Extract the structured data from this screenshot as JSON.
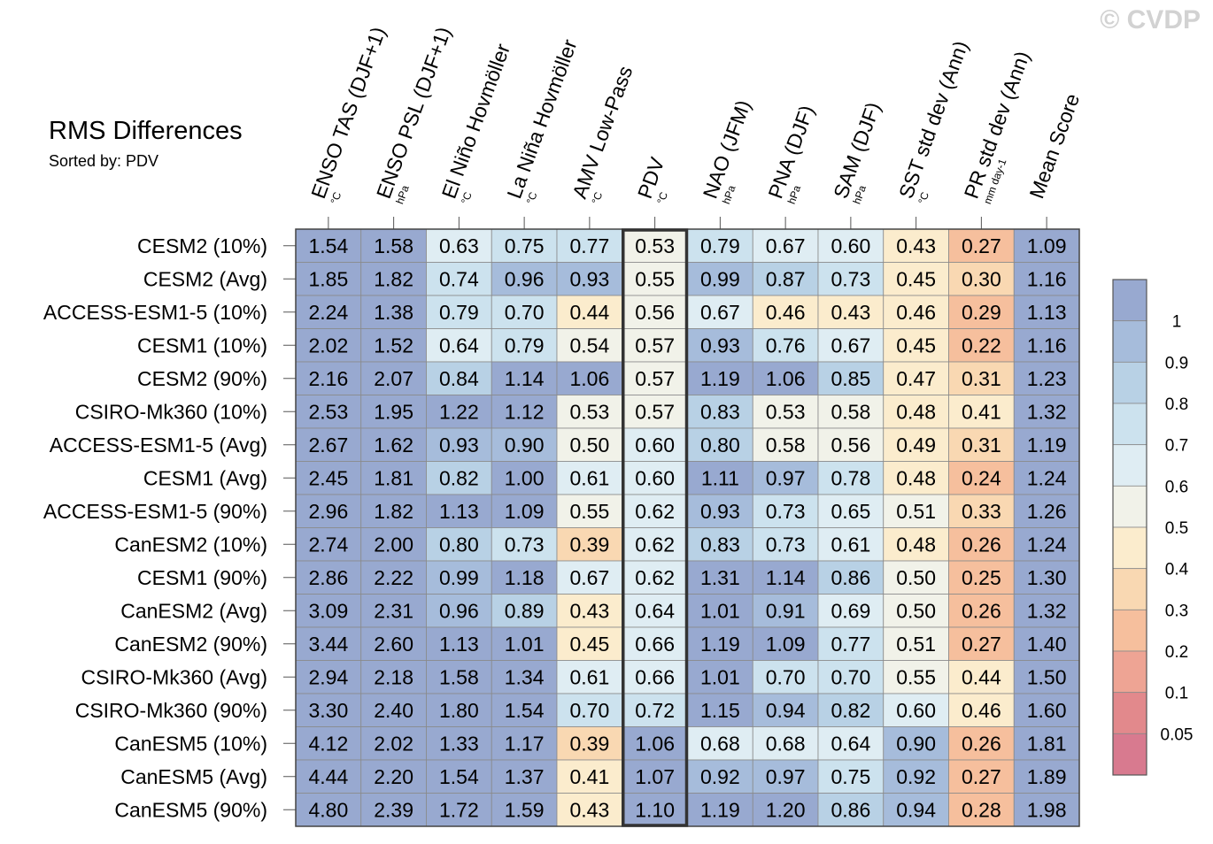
{
  "watermark": "© CVDP",
  "chart_data": {
    "type": "heatmap",
    "title": "RMS Differences",
    "subtitle": "Sorted by: PDV",
    "columns": [
      {
        "label": "ENSO TAS (DJF+1)",
        "unit": "°C"
      },
      {
        "label": "ENSO PSL (DJF+1)",
        "unit": "hPa"
      },
      {
        "label": "El Niño Hovmöller",
        "unit": "°C"
      },
      {
        "label": "La Niña Hovmöller",
        "unit": "°C"
      },
      {
        "label": "AMV Low-Pass",
        "unit": "°C"
      },
      {
        "label": "PDV",
        "unit": "°C"
      },
      {
        "label": "NAO (JFM)",
        "unit": "hPa"
      },
      {
        "label": "PNA (DJF)",
        "unit": "hPa"
      },
      {
        "label": "SAM (DJF)",
        "unit": "hPa"
      },
      {
        "label": "SST std dev (Ann)",
        "unit": "°C"
      },
      {
        "label": "PR std dev (Ann)",
        "unit": "mm day-1"
      },
      {
        "label": "Mean Score",
        "unit": ""
      }
    ],
    "highlighted_column": "PDV",
    "rows": [
      {
        "label": "CESM2 (10%)",
        "values": [
          1.54,
          1.58,
          0.63,
          0.75,
          0.77,
          0.53,
          0.79,
          0.67,
          0.6,
          0.43,
          0.27,
          1.09
        ]
      },
      {
        "label": "CESM2 (Avg)",
        "values": [
          1.85,
          1.82,
          0.74,
          0.96,
          0.93,
          0.55,
          0.99,
          0.87,
          0.73,
          0.45,
          0.3,
          1.16
        ]
      },
      {
        "label": "ACCESS-ESM1-5 (10%)",
        "values": [
          2.24,
          1.38,
          0.79,
          0.7,
          0.44,
          0.56,
          0.67,
          0.46,
          0.43,
          0.46,
          0.29,
          1.13
        ]
      },
      {
        "label": "CESM1 (10%)",
        "values": [
          2.02,
          1.52,
          0.64,
          0.79,
          0.54,
          0.57,
          0.93,
          0.76,
          0.67,
          0.45,
          0.22,
          1.16
        ]
      },
      {
        "label": "CESM2 (90%)",
        "values": [
          2.16,
          2.07,
          0.84,
          1.14,
          1.06,
          0.57,
          1.19,
          1.06,
          0.85,
          0.47,
          0.31,
          1.23
        ]
      },
      {
        "label": "CSIRO-Mk360 (10%)",
        "values": [
          2.53,
          1.95,
          1.22,
          1.12,
          0.53,
          0.57,
          0.83,
          0.53,
          0.58,
          0.48,
          0.41,
          1.32
        ]
      },
      {
        "label": "ACCESS-ESM1-5 (Avg)",
        "values": [
          2.67,
          1.62,
          0.93,
          0.9,
          0.5,
          0.6,
          0.8,
          0.58,
          0.56,
          0.49,
          0.31,
          1.19
        ]
      },
      {
        "label": "CESM1 (Avg)",
        "values": [
          2.45,
          1.81,
          0.82,
          1.0,
          0.61,
          0.6,
          1.11,
          0.97,
          0.78,
          0.48,
          0.24,
          1.24
        ]
      },
      {
        "label": "ACCESS-ESM1-5 (90%)",
        "values": [
          2.96,
          1.82,
          1.13,
          1.09,
          0.55,
          0.62,
          0.93,
          0.73,
          0.65,
          0.51,
          0.33,
          1.26
        ]
      },
      {
        "label": "CanESM2 (10%)",
        "values": [
          2.74,
          2.0,
          0.8,
          0.73,
          0.39,
          0.62,
          0.83,
          0.73,
          0.61,
          0.48,
          0.26,
          1.24
        ]
      },
      {
        "label": "CESM1 (90%)",
        "values": [
          2.86,
          2.22,
          0.99,
          1.18,
          0.67,
          0.62,
          1.31,
          1.14,
          0.86,
          0.5,
          0.25,
          1.3
        ]
      },
      {
        "label": "CanESM2 (Avg)",
        "values": [
          3.09,
          2.31,
          0.96,
          0.89,
          0.43,
          0.64,
          1.01,
          0.91,
          0.69,
          0.5,
          0.26,
          1.32
        ]
      },
      {
        "label": "CanESM2 (90%)",
        "values": [
          3.44,
          2.6,
          1.13,
          1.01,
          0.45,
          0.66,
          1.19,
          1.09,
          0.77,
          0.51,
          0.27,
          1.4
        ]
      },
      {
        "label": "CSIRO-Mk360 (Avg)",
        "values": [
          2.94,
          2.18,
          1.58,
          1.34,
          0.61,
          0.66,
          1.01,
          0.7,
          0.7,
          0.55,
          0.44,
          1.5
        ]
      },
      {
        "label": "CSIRO-Mk360 (90%)",
        "values": [
          3.3,
          2.4,
          1.8,
          1.54,
          0.7,
          0.72,
          1.15,
          0.94,
          0.82,
          0.6,
          0.46,
          1.6
        ]
      },
      {
        "label": "CanESM5 (10%)",
        "values": [
          4.12,
          2.02,
          1.33,
          1.17,
          0.39,
          1.06,
          0.68,
          0.68,
          0.64,
          0.9,
          0.26,
          1.81
        ]
      },
      {
        "label": "CanESM5 (Avg)",
        "values": [
          4.44,
          2.2,
          1.54,
          1.37,
          0.41,
          1.07,
          0.92,
          0.97,
          0.75,
          0.92,
          0.27,
          1.89
        ]
      },
      {
        "label": "CanESM5 (90%)",
        "values": [
          4.8,
          2.39,
          1.72,
          1.59,
          0.43,
          1.1,
          1.19,
          1.2,
          0.86,
          0.94,
          0.28,
          1.98
        ]
      }
    ],
    "colorbar": {
      "labels": [
        "1",
        "0.9",
        "0.8",
        "0.7",
        "0.6",
        "0.5",
        "0.4",
        "0.3",
        "0.2",
        "0.1",
        "0.05"
      ],
      "bins": [
        {
          "min": 1.0,
          "color": "#98a9d0"
        },
        {
          "min": 0.9,
          "color": "#a6bcdb"
        },
        {
          "min": 0.8,
          "color": "#b8d1e5"
        },
        {
          "min": 0.7,
          "color": "#cce2ee"
        },
        {
          "min": 0.6,
          "color": "#dfedf3"
        },
        {
          "min": 0.5,
          "color": "#f1f2e9"
        },
        {
          "min": 0.4,
          "color": "#fbeccd"
        },
        {
          "min": 0.3,
          "color": "#f9d8b2"
        },
        {
          "min": 0.2,
          "color": "#f6bf9d"
        },
        {
          "min": 0.1,
          "color": "#eea494"
        },
        {
          "min": 0.05,
          "color": "#e2898c"
        },
        {
          "min": 0,
          "color": "#d87a8f"
        }
      ]
    }
  }
}
